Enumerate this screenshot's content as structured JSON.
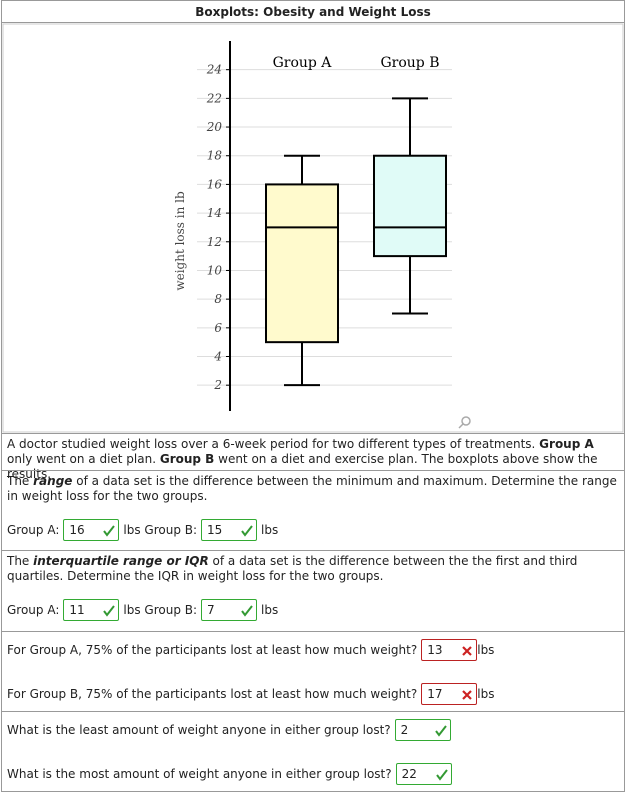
{
  "header": {
    "title": "Boxplots: Obesity and Weight Loss"
  },
  "chart_data": {
    "type": "boxplot",
    "categories": [
      "Group A",
      "Group B"
    ],
    "y_label": "weight loss in lb",
    "boxes": [
      {
        "min": 2,
        "q1": 5,
        "median": 13,
        "q3": 16,
        "max": 18
      },
      {
        "min": 7,
        "q1": 11,
        "median": 13,
        "q3": 18,
        "max": 22
      }
    ],
    "colors": [
      "#fffacd",
      "#e0fbf7"
    ],
    "ylim": [
      0.2,
      26
    ],
    "yticks": [
      2,
      4,
      6,
      8,
      10,
      12,
      14,
      16,
      18,
      20,
      22,
      24
    ],
    "grid": true
  },
  "intro": [
    "A doctor studied weight loss over a 6-week period for two different types of treatments. ",
    "Group A",
    " only went on a diet plan. ",
    "Group B",
    " went on a diet and exercise plan. The boxplots above show the results."
  ],
  "q_range": {
    "text": [
      "The ",
      "range",
      " of a data set is the difference between the minimum and maximum. Determine the range in weight loss for the two groups."
    ],
    "labels": [
      "Group A:",
      "lbs Group B:",
      "lbs"
    ],
    "answers": [
      {
        "value": 16,
        "correct": true
      },
      {
        "value": 15,
        "correct": true
      }
    ]
  },
  "q_iqr": {
    "text": [
      "The ",
      "interquartile range or IQR",
      " of a data set is the difference between the the first and third quartiles. Determine the IQR in weight loss for the two groups."
    ],
    "labels": [
      "Group A:",
      "lbs Group B:",
      "lbs"
    ],
    "answers": [
      {
        "value": 11,
        "correct": true
      },
      {
        "value": 7,
        "correct": true
      }
    ]
  },
  "q_75": [
    {
      "text": "For Group A, 75% of the participants lost at least how much weight?",
      "answer": {
        "value": 13,
        "correct": false
      },
      "unit": "lbs"
    },
    {
      "text": "For Group B, 75% of the participants lost at least how much weight?",
      "answer": {
        "value": 17,
        "correct": false
      },
      "unit": "lbs"
    }
  ],
  "q_extreme": [
    {
      "text": "What is the least amount of weight anyone in either group lost?",
      "answer": {
        "value": 2,
        "correct": true
      }
    },
    {
      "text": "What is the most amount of weight anyone in either group lost?",
      "answer": {
        "value": 22,
        "correct": true
      }
    }
  ]
}
